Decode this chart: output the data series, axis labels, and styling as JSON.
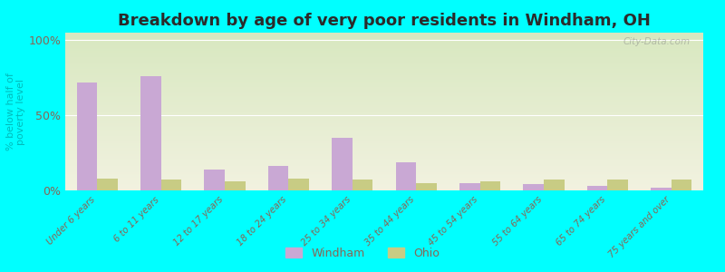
{
  "title": "Breakdown by age of very poor residents in Windham, OH",
  "ylabel": "% below half of\npoverty level",
  "categories": [
    "Under 6 years",
    "6 to 11 years",
    "12 to 17 years",
    "18 to 24 years",
    "25 to 34 years",
    "35 to 44 years",
    "45 to 54 years",
    "55 to 64 years",
    "65 to 74 years",
    "75 years and over"
  ],
  "windham_values": [
    72,
    76,
    14,
    16,
    35,
    19,
    5,
    4,
    3,
    2
  ],
  "ohio_values": [
    8,
    7,
    6,
    8,
    7,
    5,
    6,
    7,
    7,
    7
  ],
  "windham_color": "#c9a8d4",
  "ohio_color": "#c8cc84",
  "bar_width": 0.32,
  "ylim": [
    0,
    105
  ],
  "yticks": [
    0,
    50,
    100
  ],
  "ytick_labels": [
    "0%",
    "50%",
    "100%"
  ],
  "background_color": "#00ffff",
  "grad_top": "#d8e8c0",
  "grad_bottom": "#f2f2e0",
  "title_color": "#2b2b2b",
  "title_fontsize": 13,
  "axis_label_color": "#00bbbb",
  "tick_label_color": "#886655",
  "watermark": "City-Data.com",
  "legend_windham": "Windham",
  "legend_ohio": "Ohio"
}
